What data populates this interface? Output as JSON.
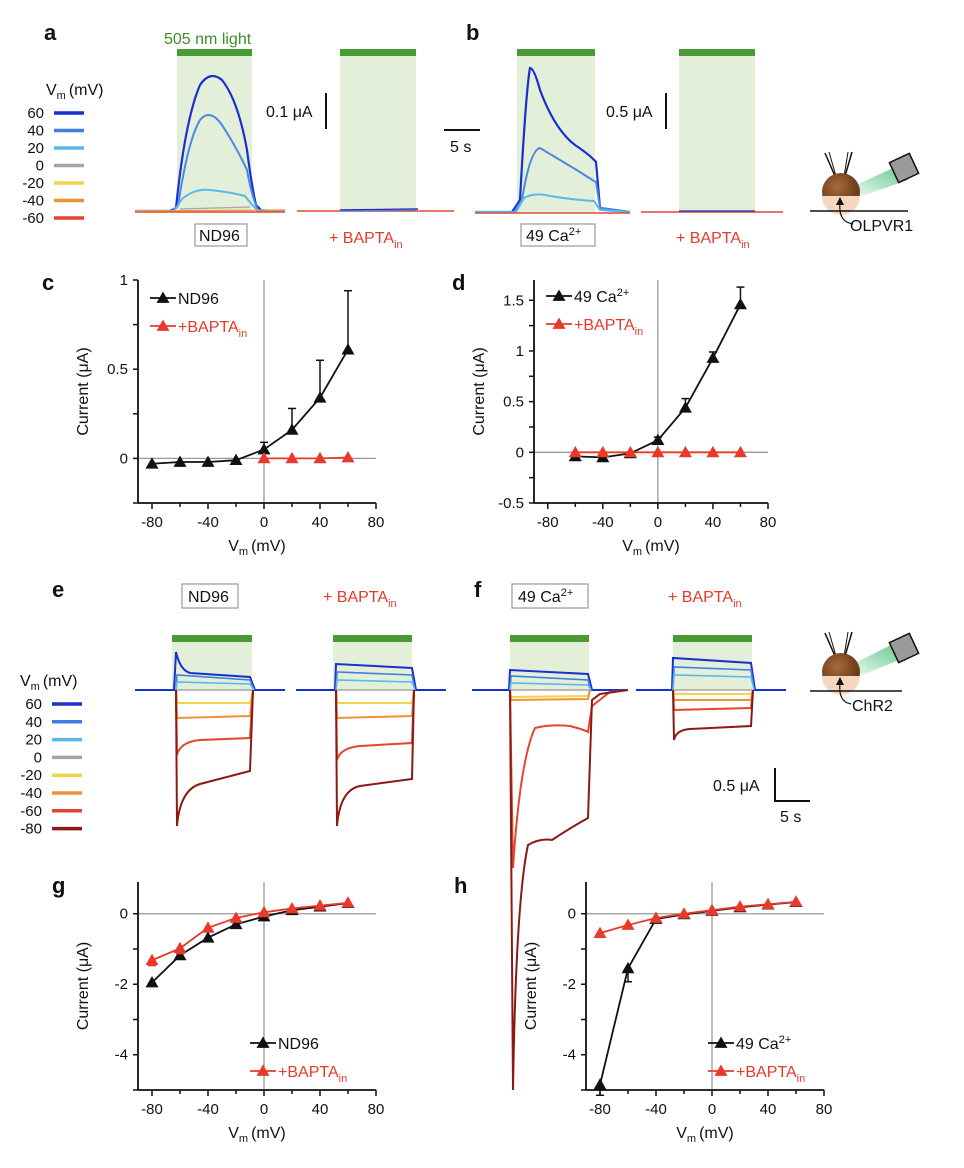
{
  "colors": {
    "light_bar": "#4a9a35",
    "light_fill": "#e3efd9",
    "black": "#111111",
    "red": "#e8392b",
    "axis_gray": "#999999"
  },
  "voltage_legend": {
    "title_main": "V",
    "title_sub": "m",
    "title_unit": "(mV)",
    "top": [
      {
        "label": "60",
        "color": "#1830d0"
      },
      {
        "label": "40",
        "color": "#3f7ee0"
      },
      {
        "label": "20",
        "color": "#5ab8ec"
      },
      {
        "label": "0",
        "color": "#a6a6a6"
      },
      {
        "label": "-20",
        "color": "#f2d44a"
      },
      {
        "label": "-40",
        "color": "#ef9236"
      },
      {
        "label": "-60",
        "color": "#e2462d"
      }
    ],
    "bottom": [
      {
        "label": "60",
        "color": "#1830d0"
      },
      {
        "label": "40",
        "color": "#3f7ee0"
      },
      {
        "label": "20",
        "color": "#5ab8ec"
      },
      {
        "label": "0",
        "color": "#a6a6a6"
      },
      {
        "label": "-20",
        "color": "#f2d44a"
      },
      {
        "label": "-40",
        "color": "#ef9236"
      },
      {
        "label": "-60",
        "color": "#e2462d"
      },
      {
        "label": "-80",
        "color": "#8b1a14"
      }
    ]
  },
  "panel_letters": {
    "a": "a",
    "b": "b",
    "c": "c",
    "d": "d",
    "e": "e",
    "f": "f",
    "g": "g",
    "h": "h"
  },
  "trace_panels": {
    "light_label": "505 nm light",
    "nd96": "ND96",
    "ca49_main": "49 Ca",
    "ca49_sup": "2+",
    "bapta_main": "+ BAPTA",
    "bapta_sub": "in",
    "scale_a": "0.1 μA",
    "scale_b": "0.5 μA",
    "scale_time_top": "5 s",
    "scale_ef_current": "0.5 μA",
    "scale_ef_time": "5 s",
    "opsin_top": "OLPVR1",
    "opsin_bottom": "ChR2"
  },
  "chart_data": [
    {
      "panel": "c",
      "type": "line",
      "xlabel_main": "V",
      "xlabel_sub": "m",
      "xlabel_unit": "(mV)",
      "ylabel": "Current (μA)",
      "xlim": [
        -90,
        80
      ],
      "ylim": [
        -0.25,
        1
      ],
      "xticks": [
        -80,
        -40,
        0,
        40,
        80
      ],
      "yticks": [
        0,
        0.5,
        1
      ],
      "legend_position": "top-left",
      "series": [
        {
          "name": "ND96",
          "name_sub": "",
          "color": "#111111",
          "x": [
            -80,
            -60,
            -40,
            -20,
            0,
            20,
            40,
            60
          ],
          "y": [
            -0.03,
            -0.02,
            -0.02,
            -0.01,
            0.05,
            0.16,
            0.34,
            0.61
          ],
          "err": [
            0,
            0,
            0,
            0,
            0.04,
            0.12,
            0.21,
            0.33
          ]
        },
        {
          "name": "+BAPTA",
          "name_sub": "in",
          "color": "#e8392b",
          "x": [
            0,
            20,
            40,
            60
          ],
          "y": [
            0,
            0,
            0,
            0.005
          ],
          "err": [
            0,
            0,
            0,
            0
          ]
        }
      ]
    },
    {
      "panel": "d",
      "type": "line",
      "xlabel_main": "V",
      "xlabel_sub": "m",
      "xlabel_unit": "(mV)",
      "ylabel": "Current (μA)",
      "xlim": [
        -90,
        80
      ],
      "ylim": [
        -0.5,
        1.7
      ],
      "xticks": [
        -80,
        -40,
        0,
        40,
        80
      ],
      "yticks": [
        -0.5,
        0,
        0.5,
        1,
        1.5
      ],
      "legend_position": "top-left",
      "series": [
        {
          "name": "49 Ca",
          "name_sup": "2+",
          "name_sub": "",
          "color": "#111111",
          "x": [
            -60,
            -40,
            -20,
            0,
            20,
            40,
            60
          ],
          "y": [
            -0.04,
            -0.05,
            -0.01,
            0.12,
            0.44,
            0.93,
            1.46
          ],
          "err": [
            0,
            0,
            0,
            0.03,
            0.09,
            0.06,
            0.17
          ]
        },
        {
          "name": "+BAPTA",
          "name_sub": "in",
          "color": "#e8392b",
          "x": [
            -60,
            -40,
            -20,
            0,
            20,
            40,
            60
          ],
          "y": [
            0,
            0,
            0,
            0,
            0,
            0,
            0
          ],
          "err": [
            0,
            0,
            0,
            0,
            0,
            0,
            0
          ]
        }
      ]
    },
    {
      "panel": "g",
      "type": "line",
      "xlabel_main": "V",
      "xlabel_sub": "m",
      "xlabel_unit": "(mV)",
      "ylabel": "Current (μA)",
      "xlim": [
        -90,
        80
      ],
      "ylim": [
        -5,
        0.9
      ],
      "xticks": [
        -80,
        -40,
        0,
        40,
        80
      ],
      "yticks": [
        -4,
        -2,
        0
      ],
      "legend_position": "bottom-right",
      "series": [
        {
          "name": "ND96",
          "name_sub": "",
          "color": "#111111",
          "x": [
            -80,
            -60,
            -40,
            -20,
            0,
            20,
            40,
            60
          ],
          "y": [
            -1.95,
            -1.18,
            -0.68,
            -0.3,
            -0.08,
            0.1,
            0.2,
            0.3
          ],
          "err": [
            0,
            0,
            0,
            0,
            0,
            0,
            0,
            0
          ]
        },
        {
          "name": "+BAPTA",
          "name_sub": "in",
          "color": "#e8392b",
          "x": [
            -80,
            -60,
            -40,
            -20,
            0,
            20,
            40,
            60
          ],
          "y": [
            -1.32,
            -0.98,
            -0.4,
            -0.12,
            0.04,
            0.15,
            0.23,
            0.31
          ],
          "err": [
            0.15,
            0.15,
            0,
            0,
            0,
            0,
            0,
            0
          ]
        }
      ]
    },
    {
      "panel": "h",
      "type": "line",
      "xlabel_main": "V",
      "xlabel_sub": "m",
      "xlabel_unit": "(mV)",
      "ylabel": "Current (μA)",
      "xlim": [
        -90,
        80
      ],
      "ylim": [
        -5,
        0.9
      ],
      "xticks": [
        -80,
        -40,
        0,
        40,
        80
      ],
      "yticks": [
        -4,
        -2,
        0
      ],
      "legend_position": "bottom-right",
      "series": [
        {
          "name": "49 Ca",
          "name_sup": "2+",
          "name_sub": "",
          "color": "#111111",
          "x": [
            -80,
            -60,
            -40,
            -20,
            0,
            20,
            40,
            60
          ],
          "y": [
            -4.85,
            -1.55,
            -0.15,
            -0.02,
            0.08,
            0.18,
            0.26,
            0.33
          ],
          "err": [
            0.3,
            0.38,
            0,
            0,
            0,
            0,
            0,
            0
          ]
        },
        {
          "name": "+BAPTA",
          "name_sub": "in",
          "color": "#e8392b",
          "x": [
            -80,
            -60,
            -40,
            -20,
            0,
            20,
            40,
            60
          ],
          "y": [
            -0.55,
            -0.32,
            -0.12,
            0.0,
            0.1,
            0.2,
            0.27,
            0.34
          ],
          "err": [
            0,
            0,
            0,
            0,
            0,
            0,
            0,
            0
          ]
        }
      ]
    }
  ]
}
